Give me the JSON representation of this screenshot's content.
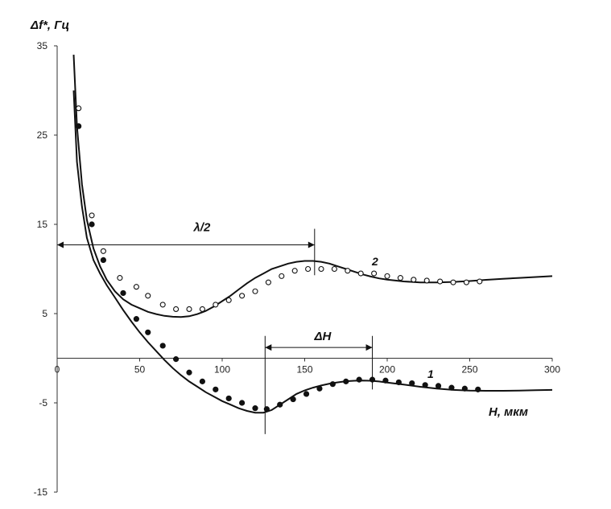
{
  "chart_data": {
    "type": "scatter",
    "ylabel": "Δf*, Гц",
    "xlabel": "H, мкм",
    "xlim": [
      0,
      300
    ],
    "ylim": [
      -15,
      35
    ],
    "x_ticks": [
      0,
      50,
      100,
      150,
      200,
      250,
      300
    ],
    "y_ticks": [
      35,
      25,
      15,
      5,
      -5,
      -15
    ],
    "grid": false,
    "series": [
      {
        "name": "1",
        "curve": [
          [
            10,
            30
          ],
          [
            12,
            22
          ],
          [
            15,
            17
          ],
          [
            18,
            13.5
          ],
          [
            22,
            11
          ],
          [
            26,
            9.5
          ],
          [
            30,
            8.2
          ],
          [
            35,
            6.8
          ],
          [
            40,
            5.4
          ],
          [
            45,
            4.1
          ],
          [
            50,
            2.9
          ],
          [
            55,
            1.8
          ],
          [
            60,
            0.8
          ],
          [
            65,
            -0.2
          ],
          [
            70,
            -1.1
          ],
          [
            75,
            -1.9
          ],
          [
            80,
            -2.6
          ],
          [
            85,
            -3.2
          ],
          [
            90,
            -3.8
          ],
          [
            95,
            -4.3
          ],
          [
            100,
            -4.8
          ],
          [
            105,
            -5.2
          ],
          [
            110,
            -5.6
          ],
          [
            115,
            -5.9
          ],
          [
            120,
            -6.1
          ],
          [
            125,
            -6.1
          ],
          [
            130,
            -5.8
          ],
          [
            135,
            -5.2
          ],
          [
            140,
            -4.6
          ],
          [
            145,
            -4.0
          ],
          [
            150,
            -3.6
          ],
          [
            155,
            -3.3
          ],
          [
            160,
            -3.05
          ],
          [
            165,
            -2.85
          ],
          [
            170,
            -2.7
          ],
          [
            175,
            -2.58
          ],
          [
            180,
            -2.52
          ],
          [
            185,
            -2.5
          ],
          [
            190,
            -2.52
          ],
          [
            195,
            -2.6
          ],
          [
            200,
            -2.72
          ],
          [
            210,
            -2.95
          ],
          [
            220,
            -3.2
          ],
          [
            230,
            -3.4
          ],
          [
            240,
            -3.55
          ],
          [
            250,
            -3.62
          ],
          [
            260,
            -3.65
          ],
          [
            270,
            -3.65
          ],
          [
            280,
            -3.62
          ],
          [
            290,
            -3.58
          ],
          [
            300,
            -3.55
          ]
        ],
        "points": [
          [
            13,
            26
          ],
          [
            21,
            15
          ],
          [
            28,
            11
          ],
          [
            40,
            7.3
          ],
          [
            48,
            4.4
          ],
          [
            55,
            2.9
          ],
          [
            64,
            1.4
          ],
          [
            72,
            -0.1
          ],
          [
            80,
            -1.6
          ],
          [
            88,
            -2.6
          ],
          [
            96,
            -3.5
          ],
          [
            104,
            -4.5
          ],
          [
            112,
            -5.0
          ],
          [
            120,
            -5.6
          ],
          [
            127,
            -5.7
          ],
          [
            135,
            -5.2
          ],
          [
            143,
            -4.6
          ],
          [
            151,
            -4.0
          ],
          [
            159,
            -3.4
          ],
          [
            167,
            -2.9
          ],
          [
            175,
            -2.6
          ],
          [
            183,
            -2.4
          ],
          [
            191,
            -2.4
          ],
          [
            199,
            -2.5
          ],
          [
            207,
            -2.7
          ],
          [
            215,
            -2.8
          ],
          [
            223,
            -3.0
          ],
          [
            231,
            -3.1
          ],
          [
            239,
            -3.3
          ],
          [
            247,
            -3.4
          ],
          [
            255,
            -3.5
          ]
        ]
      },
      {
        "name": "2",
        "curve": [
          [
            10,
            34
          ],
          [
            12,
            26
          ],
          [
            15,
            19.5
          ],
          [
            18,
            15.5
          ],
          [
            22,
            12.3
          ],
          [
            26,
            10.3
          ],
          [
            30,
            8.8
          ],
          [
            35,
            7.5
          ],
          [
            40,
            6.6
          ],
          [
            45,
            6.0
          ],
          [
            50,
            5.6
          ],
          [
            55,
            5.2
          ],
          [
            60,
            4.95
          ],
          [
            65,
            4.75
          ],
          [
            70,
            4.65
          ],
          [
            75,
            4.62
          ],
          [
            80,
            4.7
          ],
          [
            85,
            4.95
          ],
          [
            90,
            5.3
          ],
          [
            95,
            5.8
          ],
          [
            100,
            6.4
          ],
          [
            105,
            7.0
          ],
          [
            110,
            7.7
          ],
          [
            115,
            8.4
          ],
          [
            120,
            9.0
          ],
          [
            125,
            9.5
          ],
          [
            130,
            10.0
          ],
          [
            135,
            10.3
          ],
          [
            140,
            10.6
          ],
          [
            145,
            10.8
          ],
          [
            150,
            10.9
          ],
          [
            155,
            10.9
          ],
          [
            160,
            10.8
          ],
          [
            165,
            10.6
          ],
          [
            170,
            10.3
          ],
          [
            175,
            10.0
          ],
          [
            180,
            9.7
          ],
          [
            185,
            9.4
          ],
          [
            190,
            9.15
          ],
          [
            195,
            8.95
          ],
          [
            200,
            8.8
          ],
          [
            210,
            8.6
          ],
          [
            220,
            8.5
          ],
          [
            230,
            8.5
          ],
          [
            240,
            8.55
          ],
          [
            250,
            8.65
          ],
          [
            260,
            8.78
          ],
          [
            270,
            8.9
          ],
          [
            280,
            9.0
          ],
          [
            290,
            9.1
          ],
          [
            300,
            9.2
          ]
        ],
        "points": [
          [
            13,
            28
          ],
          [
            21,
            16
          ],
          [
            28,
            12
          ],
          [
            38,
            9
          ],
          [
            48,
            8
          ],
          [
            55,
            7
          ],
          [
            64,
            6
          ],
          [
            72,
            5.5
          ],
          [
            80,
            5.5
          ],
          [
            88,
            5.5
          ],
          [
            96,
            6
          ],
          [
            104,
            6.5
          ],
          [
            112,
            7
          ],
          [
            120,
            7.5
          ],
          [
            128,
            8.5
          ],
          [
            136,
            9.2
          ],
          [
            144,
            9.8
          ],
          [
            152,
            10
          ],
          [
            160,
            10
          ],
          [
            168,
            10
          ],
          [
            176,
            9.8
          ],
          [
            184,
            9.5
          ],
          [
            192,
            9.5
          ],
          [
            200,
            9.2
          ],
          [
            208,
            9
          ],
          [
            216,
            8.8
          ],
          [
            224,
            8.7
          ],
          [
            232,
            8.6
          ],
          [
            240,
            8.5
          ],
          [
            248,
            8.5
          ],
          [
            256,
            8.6
          ]
        ]
      }
    ],
    "annotations": [
      {
        "text": "λ/2",
        "from_x": 0,
        "to_x": 156,
        "y": 12.7
      },
      {
        "text": "ΔH",
        "from_x": 126,
        "to_x": 191,
        "y": 1.2
      }
    ]
  }
}
